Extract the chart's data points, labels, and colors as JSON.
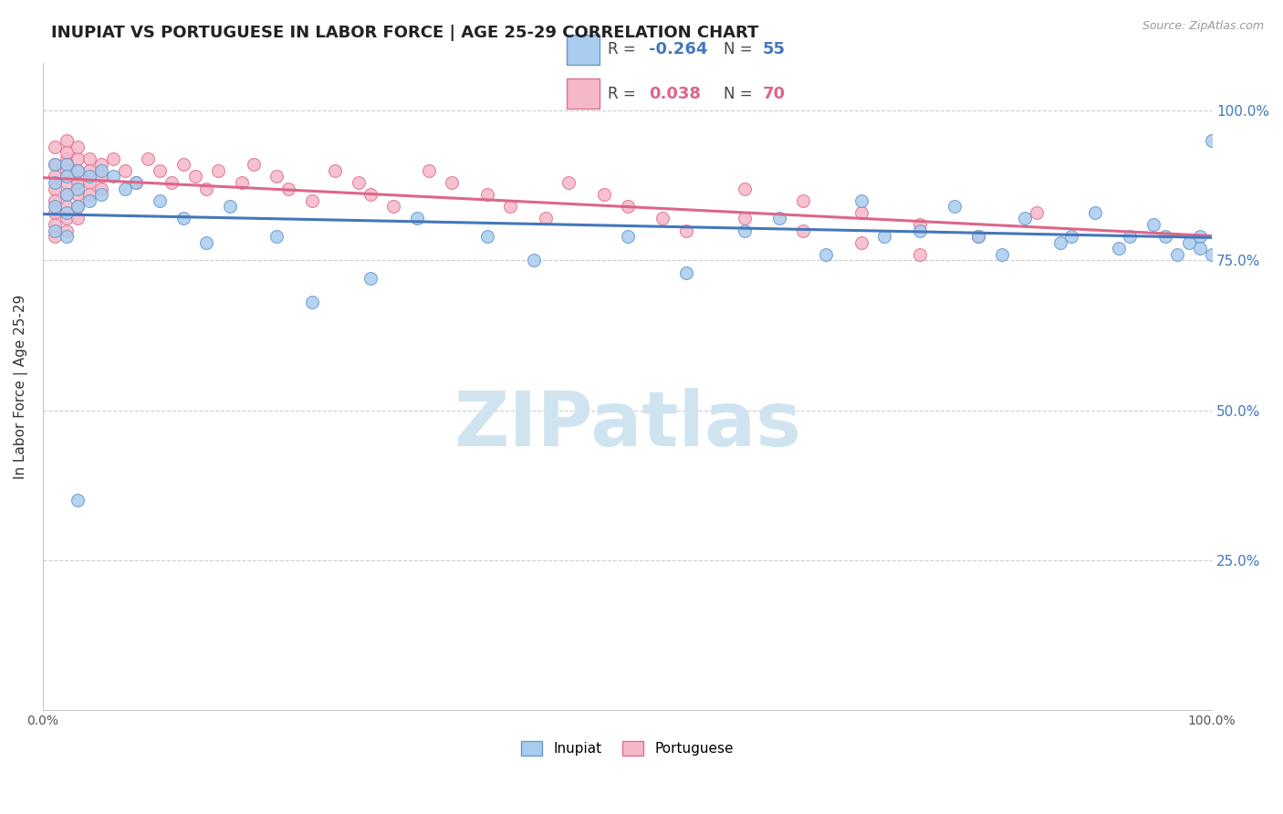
{
  "title": "INUPIAT VS PORTUGUESE IN LABOR FORCE | AGE 25-29 CORRELATION CHART",
  "source_text": "Source: ZipAtlas.com",
  "ylabel": "In Labor Force | Age 25-29",
  "xlim": [
    0,
    1
  ],
  "ylim": [
    0,
    1.08
  ],
  "grid_color": "#cccccc",
  "background_color": "#ffffff",
  "inupiat_color": "#aaccee",
  "portuguese_color": "#f5b8c8",
  "inupiat_edge_color": "#6699cc",
  "portuguese_edge_color": "#e07090",
  "inupiat_line_color": "#4477bb",
  "portuguese_line_color": "#dd6688",
  "legend_R_inupiat": "-0.264",
  "legend_N_inupiat": "55",
  "legend_R_portuguese": "0.038",
  "legend_N_portuguese": "70",
  "watermark_text": "ZIPatlas",
  "watermark_color": "#d0e4f0",
  "marker_size": 100,
  "line_width": 2.2,
  "inupiat_x": [
    0.01,
    0.01,
    0.01,
    0.01,
    0.02,
    0.02,
    0.02,
    0.02,
    0.02,
    0.03,
    0.03,
    0.03,
    0.04,
    0.04,
    0.05,
    0.05,
    0.06,
    0.07,
    0.08,
    0.1,
    0.12,
    0.14,
    0.16,
    0.2,
    0.23,
    0.28,
    0.32,
    0.38,
    0.42,
    0.5,
    0.55,
    0.6,
    0.63,
    0.67,
    0.7,
    0.72,
    0.75,
    0.78,
    0.8,
    0.82,
    0.84,
    0.87,
    0.88,
    0.9,
    0.92,
    0.93,
    0.95,
    0.96,
    0.97,
    0.98,
    0.99,
    0.99,
    1.0,
    1.0,
    0.03
  ],
  "inupiat_y": [
    0.91,
    0.88,
    0.84,
    0.8,
    0.91,
    0.89,
    0.86,
    0.83,
    0.79,
    0.9,
    0.87,
    0.84,
    0.89,
    0.85,
    0.9,
    0.86,
    0.89,
    0.87,
    0.88,
    0.85,
    0.82,
    0.78,
    0.84,
    0.79,
    0.68,
    0.72,
    0.82,
    0.79,
    0.75,
    0.79,
    0.73,
    0.8,
    0.82,
    0.76,
    0.85,
    0.79,
    0.8,
    0.84,
    0.79,
    0.76,
    0.82,
    0.78,
    0.79,
    0.83,
    0.77,
    0.79,
    0.81,
    0.79,
    0.76,
    0.78,
    0.79,
    0.77,
    0.95,
    0.76,
    0.35
  ],
  "portuguese_x": [
    0.01,
    0.01,
    0.01,
    0.01,
    0.01,
    0.01,
    0.01,
    0.01,
    0.02,
    0.02,
    0.02,
    0.02,
    0.02,
    0.02,
    0.02,
    0.02,
    0.02,
    0.03,
    0.03,
    0.03,
    0.03,
    0.03,
    0.03,
    0.03,
    0.04,
    0.04,
    0.04,
    0.04,
    0.05,
    0.05,
    0.05,
    0.06,
    0.07,
    0.08,
    0.09,
    0.1,
    0.11,
    0.12,
    0.13,
    0.14,
    0.15,
    0.17,
    0.18,
    0.2,
    0.21,
    0.23,
    0.25,
    0.27,
    0.28,
    0.3,
    0.33,
    0.35,
    0.38,
    0.4,
    0.43,
    0.45,
    0.48,
    0.5,
    0.53,
    0.55,
    0.6,
    0.65,
    0.7,
    0.75,
    0.8,
    0.85,
    0.6,
    0.65,
    0.7,
    0.75
  ],
  "portuguese_y": [
    0.91,
    0.89,
    0.87,
    0.85,
    0.83,
    0.81,
    0.79,
    0.94,
    0.92,
    0.9,
    0.88,
    0.86,
    0.84,
    0.82,
    0.8,
    0.95,
    0.93,
    0.92,
    0.9,
    0.88,
    0.86,
    0.84,
    0.82,
    0.94,
    0.92,
    0.9,
    0.88,
    0.86,
    0.91,
    0.89,
    0.87,
    0.92,
    0.9,
    0.88,
    0.92,
    0.9,
    0.88,
    0.91,
    0.89,
    0.87,
    0.9,
    0.88,
    0.91,
    0.89,
    0.87,
    0.85,
    0.9,
    0.88,
    0.86,
    0.84,
    0.9,
    0.88,
    0.86,
    0.84,
    0.82,
    0.88,
    0.86,
    0.84,
    0.82,
    0.8,
    0.87,
    0.85,
    0.83,
    0.81,
    0.79,
    0.83,
    0.82,
    0.8,
    0.78,
    0.76
  ]
}
